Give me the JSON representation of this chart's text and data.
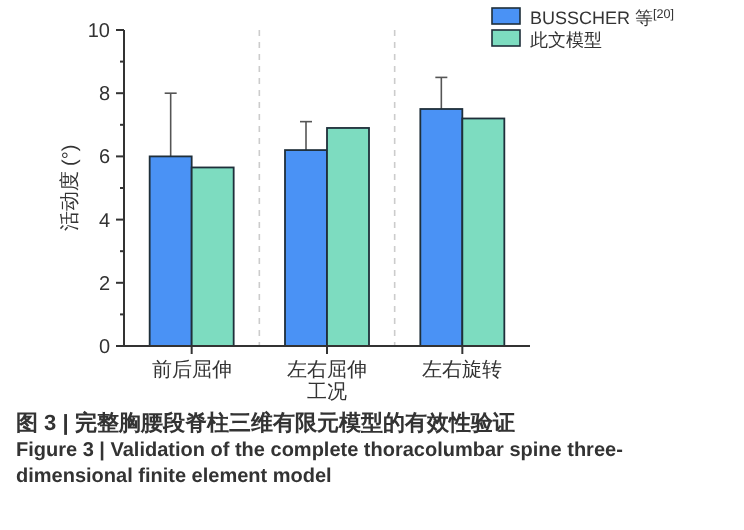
{
  "chart_data": {
    "type": "bar",
    "xlabel": "工况",
    "ylabel": "活动度 (°)",
    "categories": [
      "前后屈伸",
      "左右屈伸",
      "左右旋转"
    ],
    "series": [
      {
        "name": "BUSSCHER 等$^{[20]}$",
        "color": "#4a92f5",
        "values": [
          6.0,
          6.2,
          7.5
        ],
        "errors": [
          2.0,
          0.9,
          1.0
        ]
      },
      {
        "name": "此文模型",
        "color": "#7ddcc0",
        "values": [
          5.65,
          6.9,
          7.2
        ]
      }
    ],
    "ylim": [
      0,
      10
    ],
    "yticks": [
      0,
      2,
      4,
      6,
      8,
      10
    ],
    "grid": "x",
    "legend": "top right",
    "annotations": [
      "图 3 | 完整胸腰段脊柱三维有限元模型的有效性验证",
      "Figure 3 | Validation of the complete thoracolumbar spine three-dimensional finite element model"
    ]
  }
}
